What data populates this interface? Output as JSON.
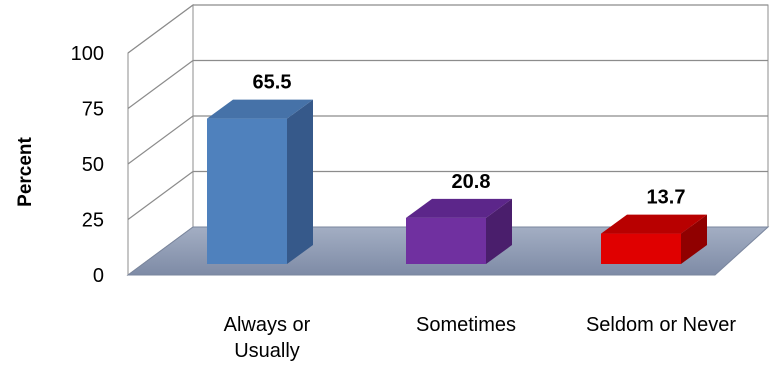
{
  "chart_data": {
    "type": "bar",
    "categories": [
      "Always or Usually",
      "Sometimes",
      "Seldom or Never"
    ],
    "category_label_lines": [
      [
        "Always or",
        "Usually"
      ],
      [
        "Sometimes"
      ],
      [
        "Seldom or Never"
      ]
    ],
    "values": [
      65.5,
      20.8,
      13.7
    ],
    "value_labels": [
      "65.5",
      "20.8",
      "13.7"
    ],
    "title": "",
    "xlabel": "",
    "ylabel": "Percent",
    "ylim": [
      0,
      100
    ],
    "yticks": [
      0,
      25,
      50,
      75,
      100
    ],
    "grid": true,
    "style": "3d-column",
    "colors": {
      "bars": [
        {
          "front": "#4f81bd",
          "side": "#36598a",
          "top": "#4672a8"
        },
        {
          "front": "#7030a0",
          "side": "#4a1e6c",
          "top": "#5c268a"
        },
        {
          "front": "#e00000",
          "side": "#900000",
          "top": "#b80000"
        }
      ],
      "floor": "#8e9bb3",
      "walls": "#ffffff",
      "gridlines": "#8c8c8c"
    }
  }
}
